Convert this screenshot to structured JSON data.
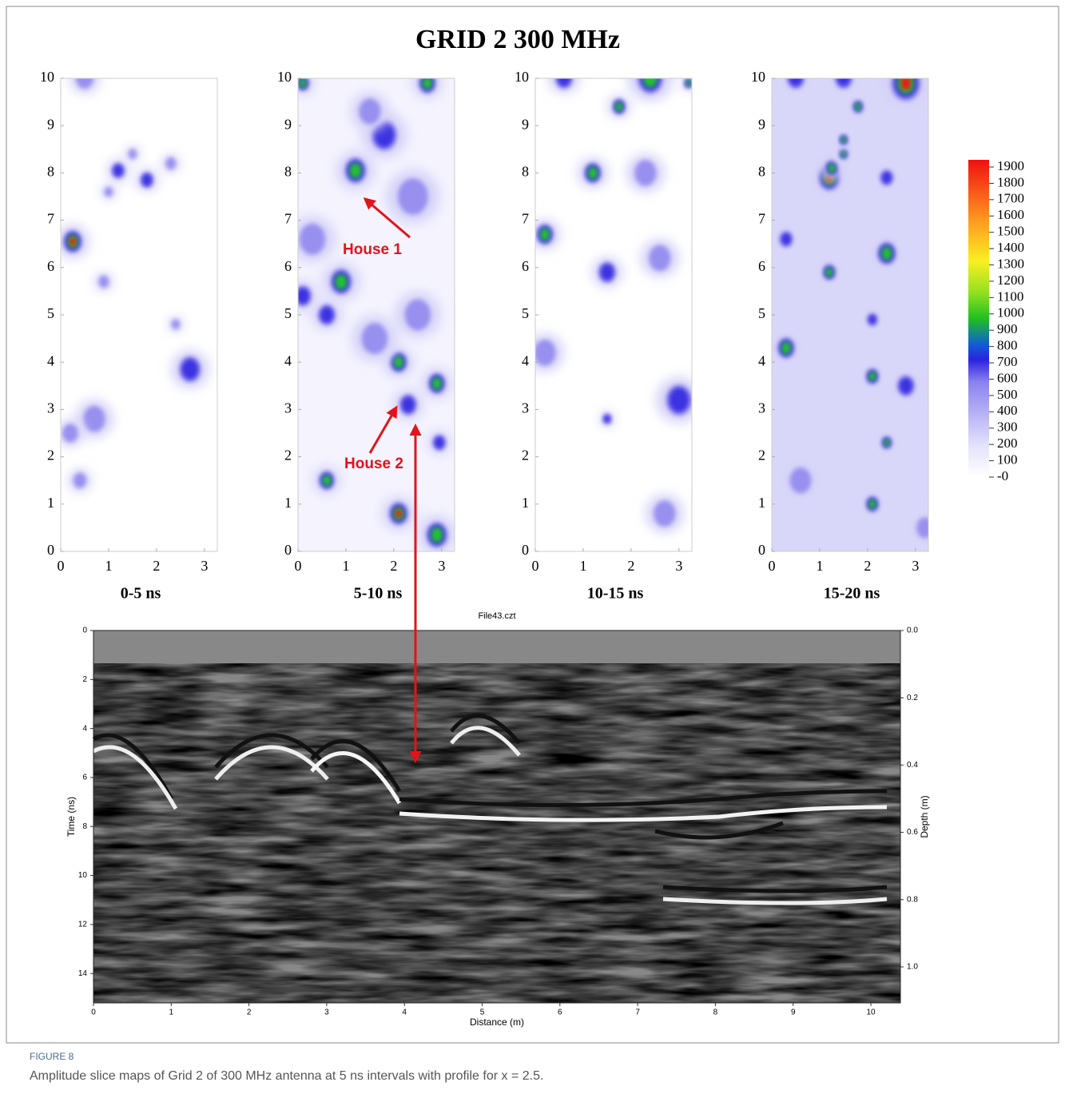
{
  "figure": {
    "title": "GRID 2 300 MHz",
    "slices": {
      "panels": [
        {
          "label": "0-5 ns"
        },
        {
          "label": "5-10 ns"
        },
        {
          "label": "10-15 ns"
        },
        {
          "label": "15-20 ns"
        }
      ],
      "xlim": [
        0,
        3.27
      ],
      "ylim": [
        0,
        10
      ],
      "xticks": [
        0,
        1,
        2,
        3
      ],
      "yticks": [
        0,
        1,
        2,
        3,
        4,
        5,
        6,
        7,
        8,
        9,
        10
      ]
    },
    "annotations": [
      "House 1",
      "House 2"
    ],
    "colorbar": {
      "ylim": [
        0,
        1900
      ],
      "ticks": [
        1900,
        1800,
        1700,
        1600,
        1500,
        1400,
        1300,
        1200,
        1100,
        1000,
        900,
        800,
        700,
        600,
        500,
        400,
        300,
        200,
        100,
        {
          "value": 0,
          "label": "-0"
        }
      ]
    },
    "profile": {
      "title": "File43.czt",
      "xlabel": "Distance (m)",
      "ylabel": "Time (ns)",
      "y2label": "Depth (m)",
      "xlim": [
        0,
        10.38
      ],
      "ylim": [
        0,
        15.2
      ],
      "y2lim": [
        0,
        1.107
      ],
      "xticks": [
        0,
        1,
        2,
        3,
        4,
        5,
        6,
        7,
        8,
        9,
        10
      ],
      "yticks": [
        0,
        2,
        4,
        6,
        8,
        10,
        12,
        14
      ],
      "y2ticks": [
        {
          "value": 0,
          "label": "0.0"
        },
        0.2,
        0.4,
        0.6,
        0.8,
        {
          "value": 1,
          "label": "1.0"
        }
      ]
    }
  },
  "caption": {
    "label": "FIGURE 8",
    "text": "Amplitude slice maps of Grid 2 of 300 MHz antenna at 5 ns intervals with profile for x = 2.5."
  }
}
